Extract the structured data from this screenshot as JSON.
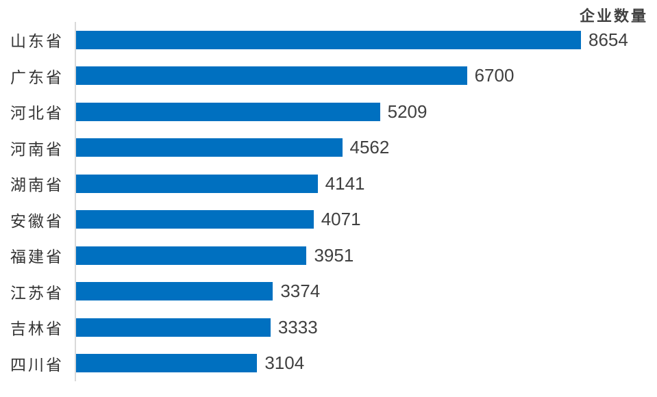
{
  "chart_data": {
    "type": "bar",
    "orientation": "horizontal",
    "title": "企业数量",
    "categories": [
      "山东省",
      "广东省",
      "河北省",
      "河南省",
      "湖南省",
      "安徽省",
      "福建省",
      "江苏省",
      "吉林省",
      "四川省"
    ],
    "values": [
      8654,
      6700,
      5209,
      4562,
      4141,
      4071,
      3951,
      3374,
      3333,
      3104
    ],
    "value_labels_shown": true,
    "xlabel": "",
    "ylabel": "",
    "xlim": [
      0,
      9000
    ],
    "grid": false,
    "legend": "none",
    "colors": {
      "bar": "#0070c0",
      "axis_line": "#d9d9d9",
      "label_text": "#333333",
      "value_text": "#404040",
      "title_text": "#404040"
    }
  }
}
